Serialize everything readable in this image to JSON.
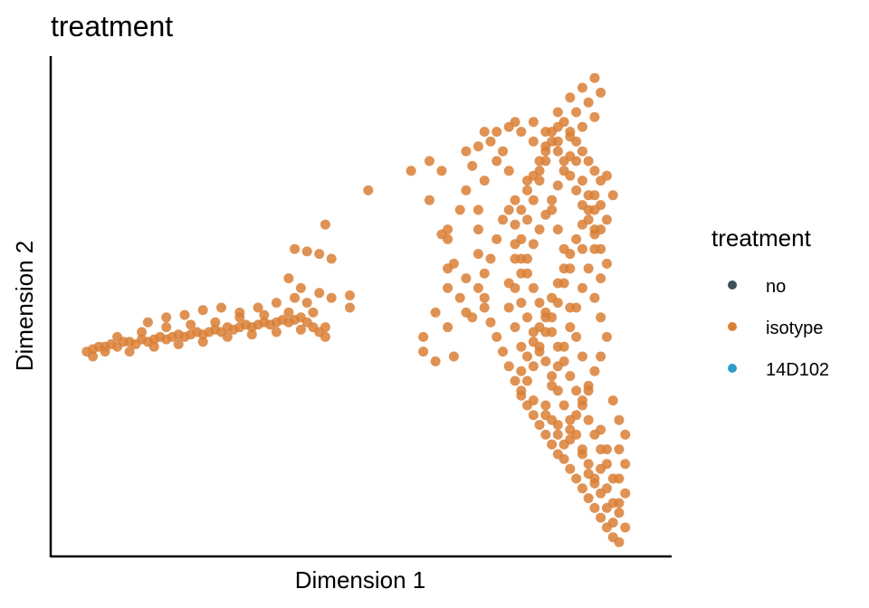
{
  "chart_data": {
    "type": "scatter",
    "title": "treatment",
    "xlabel": "Dimension 1",
    "ylabel": "Dimension 2",
    "xlim": [
      0,
      100
    ],
    "ylim": [
      0,
      100
    ],
    "grid": false,
    "axis_ticks": false,
    "legend": {
      "title": "treatment",
      "position": "right",
      "entries": [
        {
          "label": "no",
          "color": "#3f4f5a"
        },
        {
          "label": "isotype",
          "color": "#d97f35"
        },
        {
          "label": "14D102",
          "color": "#2e9ccb"
        }
      ]
    },
    "series": [
      {
        "name": "isotype",
        "color": "#d97f35",
        "opacity": 0.85,
        "points": [
          [
            5,
            41
          ],
          [
            6,
            41.5
          ],
          [
            7,
            42
          ],
          [
            8,
            42
          ],
          [
            9,
            42.5
          ],
          [
            10,
            42
          ],
          [
            11,
            43
          ],
          [
            12,
            43
          ],
          [
            13,
            42.5
          ],
          [
            14,
            43.5
          ],
          [
            15,
            43
          ],
          [
            16,
            43.5
          ],
          [
            17,
            44
          ],
          [
            18,
            43.5
          ],
          [
            19,
            44
          ],
          [
            20,
            44.5
          ],
          [
            21,
            44
          ],
          [
            22,
            44.5
          ],
          [
            23,
            45
          ],
          [
            24,
            44.5
          ],
          [
            25,
            45
          ],
          [
            26,
            45.5
          ],
          [
            27,
            45
          ],
          [
            28,
            46
          ],
          [
            29,
            45.5
          ],
          [
            30,
            46
          ],
          [
            31,
            46.5
          ],
          [
            32,
            46
          ],
          [
            33,
            46.5
          ],
          [
            34,
            47
          ],
          [
            35,
            46.5
          ],
          [
            36,
            47
          ],
          [
            37,
            47.5
          ],
          [
            38,
            47
          ],
          [
            39,
            47.5
          ],
          [
            40,
            48
          ],
          [
            41,
            47
          ],
          [
            42,
            46
          ],
          [
            43,
            45
          ],
          [
            44,
            46
          ],
          [
            6,
            40
          ],
          [
            8,
            41
          ],
          [
            10,
            44
          ],
          [
            12,
            41
          ],
          [
            14,
            45
          ],
          [
            16,
            42
          ],
          [
            18,
            46
          ],
          [
            20,
            42.5
          ],
          [
            22,
            46.5
          ],
          [
            24,
            43
          ],
          [
            26,
            47
          ],
          [
            28,
            44
          ],
          [
            30,
            48
          ],
          [
            32,
            44.5
          ],
          [
            34,
            48.5
          ],
          [
            36,
            45
          ],
          [
            38,
            49
          ],
          [
            40,
            45.5
          ],
          [
            42,
            49
          ],
          [
            44,
            44
          ],
          [
            15,
            47
          ],
          [
            18,
            48
          ],
          [
            21,
            48.5
          ],
          [
            24,
            49.5
          ],
          [
            27,
            50
          ],
          [
            30,
            49
          ],
          [
            33,
            50
          ],
          [
            36,
            51
          ],
          [
            39,
            52
          ],
          [
            41,
            51
          ],
          [
            38,
            56
          ],
          [
            40,
            54
          ],
          [
            43,
            53
          ],
          [
            45,
            52
          ],
          [
            39,
            62
          ],
          [
            41,
            61.5
          ],
          [
            43,
            61
          ],
          [
            45,
            60
          ],
          [
            48,
            52.5
          ],
          [
            48,
            50
          ],
          [
            44,
            67
          ],
          [
            51,
            74
          ],
          [
            58,
            78
          ],
          [
            61,
            80
          ],
          [
            63,
            78
          ],
          [
            61,
            72
          ],
          [
            63,
            65
          ],
          [
            64,
            64
          ],
          [
            64,
            58
          ],
          [
            64,
            54
          ],
          [
            62,
            49
          ],
          [
            64,
            46
          ],
          [
            60,
            44
          ],
          [
            60,
            41
          ],
          [
            62,
            39
          ],
          [
            65,
            40
          ],
          [
            67,
            49
          ],
          [
            66,
            52
          ],
          [
            69,
            61
          ],
          [
            68,
            48
          ],
          [
            67,
            56
          ],
          [
            65,
            59
          ],
          [
            70,
            52
          ],
          [
            69,
            66
          ],
          [
            66,
            70
          ],
          [
            64,
            66
          ],
          [
            67,
            74
          ],
          [
            68,
            79
          ],
          [
            70,
            76
          ],
          [
            69,
            70
          ],
          [
            67,
            82
          ],
          [
            69,
            83
          ],
          [
            72,
            86
          ],
          [
            74,
            87
          ],
          [
            70,
            86
          ],
          [
            71,
            84
          ],
          [
            73,
            82
          ],
          [
            75,
            88
          ],
          [
            72,
            80
          ],
          [
            74,
            78
          ],
          [
            76,
            86
          ],
          [
            78,
            84
          ],
          [
            78,
            88
          ],
          [
            80,
            86
          ],
          [
            82,
            90
          ],
          [
            84,
            93
          ],
          [
            86,
            95
          ],
          [
            88,
            97
          ],
          [
            87,
            92
          ],
          [
            85,
            90
          ],
          [
            89,
            94
          ],
          [
            88,
            89
          ],
          [
            86,
            87
          ],
          [
            84,
            86
          ],
          [
            82,
            84
          ],
          [
            80,
            82
          ],
          [
            79,
            78
          ],
          [
            77,
            76
          ],
          [
            75,
            72
          ],
          [
            74,
            70
          ],
          [
            73,
            68
          ],
          [
            72,
            64
          ],
          [
            71,
            60
          ],
          [
            70,
            57
          ],
          [
            69,
            54
          ],
          [
            70,
            50
          ],
          [
            71,
            47
          ],
          [
            72,
            44
          ],
          [
            73,
            41
          ],
          [
            74,
            38
          ],
          [
            75,
            35
          ],
          [
            76,
            32
          ],
          [
            77,
            30
          ],
          [
            78,
            28
          ],
          [
            79,
            26
          ],
          [
            80,
            24
          ],
          [
            81,
            22
          ],
          [
            82,
            20
          ],
          [
            83,
            19
          ],
          [
            84,
            17
          ],
          [
            85,
            15
          ],
          [
            86,
            13
          ],
          [
            87,
            11
          ],
          [
            88,
            9
          ],
          [
            89,
            7
          ],
          [
            90,
            5
          ],
          [
            91,
            3
          ],
          [
            92,
            2
          ],
          [
            91,
            6
          ],
          [
            90,
            9
          ],
          [
            89,
            12
          ],
          [
            88,
            15
          ],
          [
            87,
            18
          ],
          [
            86,
            21
          ],
          [
            85,
            24
          ],
          [
            84,
            27
          ],
          [
            83,
            30
          ],
          [
            82,
            33
          ],
          [
            81,
            36
          ],
          [
            80,
            39
          ],
          [
            79,
            42
          ],
          [
            78,
            45
          ],
          [
            77,
            48
          ],
          [
            76,
            51
          ],
          [
            75,
            54
          ],
          [
            76,
            57
          ],
          [
            77,
            60
          ],
          [
            78,
            63
          ],
          [
            79,
            66
          ],
          [
            80,
            69
          ],
          [
            81,
            72
          ],
          [
            82,
            75
          ],
          [
            83,
            78
          ],
          [
            84,
            81
          ],
          [
            85,
            84
          ],
          [
            86,
            82
          ],
          [
            87,
            80
          ],
          [
            88,
            78
          ],
          [
            89,
            76
          ],
          [
            88,
            73
          ],
          [
            87,
            70
          ],
          [
            86,
            67
          ],
          [
            85,
            64
          ],
          [
            84,
            61
          ],
          [
            83,
            58
          ],
          [
            82,
            55
          ],
          [
            81,
            52
          ],
          [
            80,
            49
          ],
          [
            79,
            46
          ],
          [
            78,
            43
          ],
          [
            77,
            40
          ],
          [
            76,
            37
          ],
          [
            76,
            42
          ],
          [
            75,
            46
          ],
          [
            74,
            50
          ],
          [
            74,
            55
          ],
          [
            75,
            60
          ],
          [
            76,
            64
          ],
          [
            77,
            68
          ],
          [
            78,
            72
          ],
          [
            79,
            76
          ],
          [
            80,
            80
          ],
          [
            81,
            84
          ],
          [
            82,
            87
          ],
          [
            83,
            88
          ],
          [
            84,
            85
          ],
          [
            85,
            80
          ],
          [
            86,
            76
          ],
          [
            87,
            73
          ],
          [
            88,
            70
          ],
          [
            89,
            66
          ],
          [
            88,
            62
          ],
          [
            87,
            58
          ],
          [
            86,
            54
          ],
          [
            85,
            50
          ],
          [
            84,
            46
          ],
          [
            83,
            42
          ],
          [
            82,
            38
          ],
          [
            81,
            34
          ],
          [
            80,
            30
          ],
          [
            81,
            27
          ],
          [
            82,
            24
          ],
          [
            83,
            22
          ],
          [
            84,
            25
          ],
          [
            85,
            28
          ],
          [
            86,
            31
          ],
          [
            87,
            34
          ],
          [
            88,
            37
          ],
          [
            89,
            40
          ],
          [
            90,
            44
          ],
          [
            89,
            48
          ],
          [
            88,
            52
          ],
          [
            89,
            56
          ],
          [
            90,
            59
          ],
          [
            89,
            62
          ],
          [
            88,
            65
          ],
          [
            90,
            68
          ],
          [
            89,
            71
          ],
          [
            91,
            73
          ],
          [
            90,
            77
          ],
          [
            91,
            31
          ],
          [
            92,
            27
          ],
          [
            93,
            24
          ],
          [
            92,
            21
          ],
          [
            93,
            18
          ],
          [
            92,
            15
          ],
          [
            93,
            12
          ],
          [
            91,
            15
          ],
          [
            90,
            18
          ],
          [
            89,
            21
          ],
          [
            88,
            24
          ],
          [
            87,
            27
          ],
          [
            86,
            30
          ],
          [
            85,
            33
          ],
          [
            84,
            36
          ],
          [
            83,
            39
          ],
          [
            82,
            42
          ],
          [
            81,
            45
          ],
          [
            80,
            48
          ],
          [
            79,
            51
          ],
          [
            78,
            54
          ],
          [
            77,
            57
          ],
          [
            76,
            60
          ],
          [
            75,
            63
          ],
          [
            75,
            67
          ],
          [
            76,
            70
          ],
          [
            77,
            74
          ],
          [
            78,
            77
          ],
          [
            79,
            80
          ],
          [
            80,
            83
          ],
          [
            81,
            86
          ],
          [
            82,
            82
          ],
          [
            83,
            80
          ],
          [
            84,
            77
          ],
          [
            85,
            74
          ],
          [
            86,
            71
          ],
          [
            87,
            68
          ],
          [
            88,
            66
          ],
          [
            86,
            62
          ],
          [
            84,
            58
          ],
          [
            83,
            55
          ],
          [
            82,
            51
          ],
          [
            81,
            48
          ],
          [
            80,
            45
          ],
          [
            79,
            41
          ],
          [
            78,
            38
          ],
          [
            77,
            35
          ],
          [
            76,
            33
          ],
          [
            78,
            31
          ],
          [
            80,
            28
          ],
          [
            82,
            26
          ],
          [
            84,
            23
          ],
          [
            86,
            20
          ],
          [
            87,
            16
          ],
          [
            88,
            14
          ],
          [
            89,
            17
          ],
          [
            90,
            13
          ],
          [
            91,
            10
          ],
          [
            92,
            8
          ],
          [
            93,
            5
          ],
          [
            92,
            10
          ],
          [
            90,
            21
          ],
          [
            89,
            25
          ],
          [
            87,
            33
          ],
          [
            86,
            40
          ],
          [
            85,
            44
          ],
          [
            84,
            50
          ],
          [
            83,
            62
          ],
          [
            82,
            66
          ],
          [
            81,
            70
          ]
        ]
      }
    ]
  }
}
